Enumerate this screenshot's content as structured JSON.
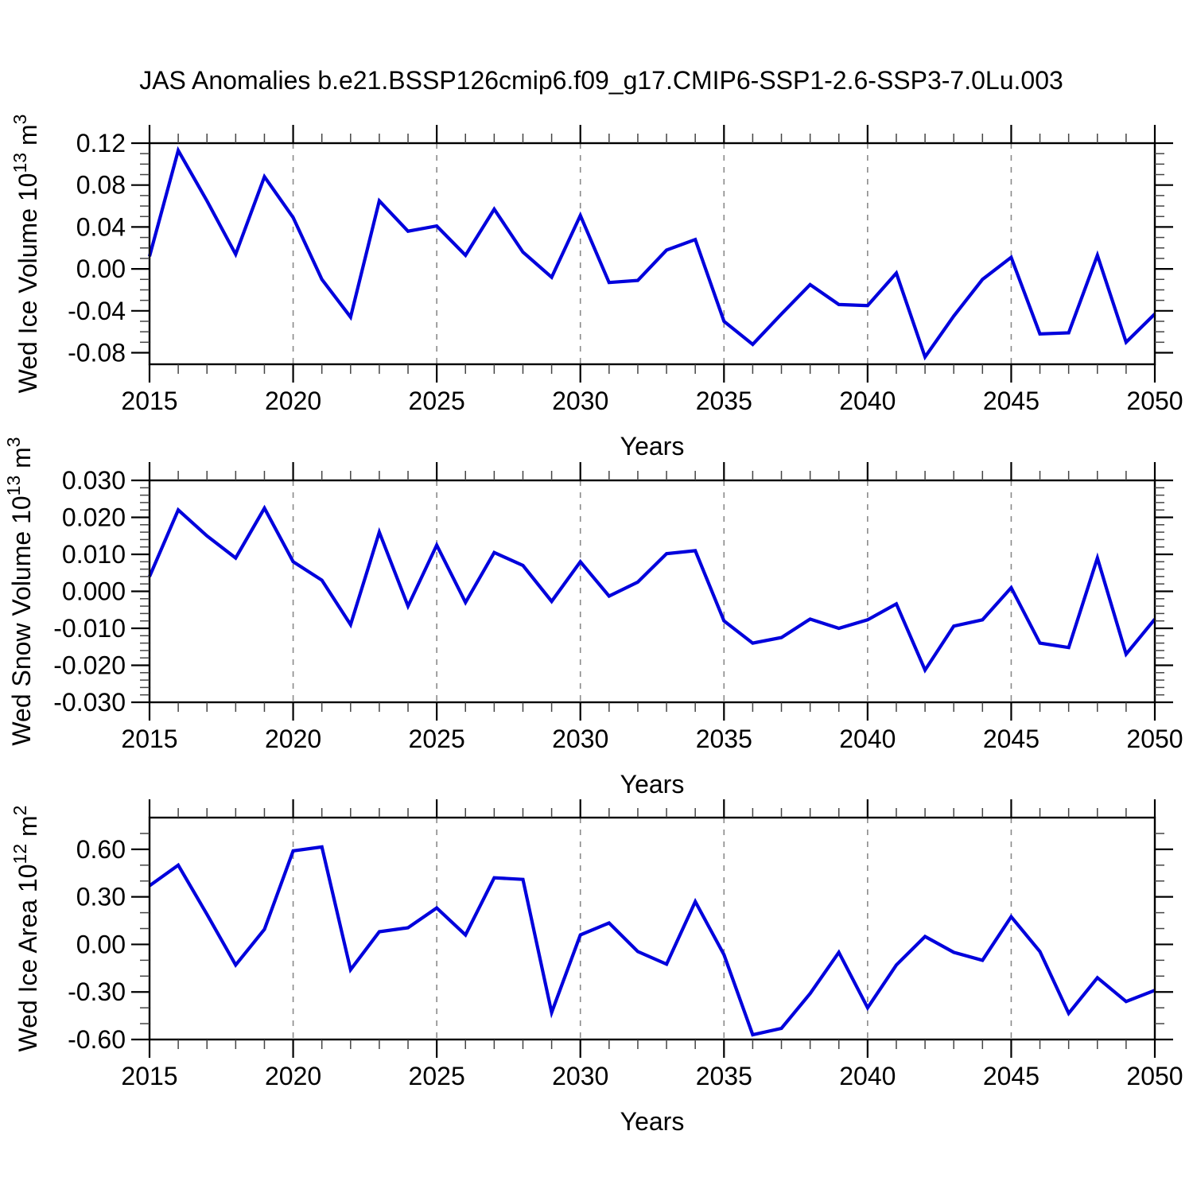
{
  "title": "JAS Anomalies b.e21.BSSP126cmip6.f09_g17.CMIP6-SSP1-2.6-SSP3-7.0Lu.003",
  "xlabel": "Years",
  "style": {
    "line_color": "#0000dc",
    "axis_color": "#000000",
    "minor_tick_color": "#444444",
    "grid_color": "#8a8a8a",
    "background": "#ffffff"
  },
  "years": [
    2015,
    2016,
    2017,
    2018,
    2019,
    2020,
    2021,
    2022,
    2023,
    2024,
    2025,
    2026,
    2027,
    2028,
    2029,
    2030,
    2031,
    2032,
    2033,
    2034,
    2035,
    2036,
    2037,
    2038,
    2039,
    2040,
    2041,
    2042,
    2043,
    2044,
    2045,
    2046,
    2047,
    2048,
    2049,
    2050
  ],
  "chart_data": [
    {
      "type": "line",
      "id": "wed-ice-volume",
      "ylabel": "Wed Ice Volume 10^13 m^3",
      "ylabel_parts": [
        {
          "t": "Wed Ice Volume 10"
        },
        {
          "t": "13",
          "sup": true
        },
        {
          "t": " m"
        },
        {
          "t": "3",
          "sup": true
        }
      ],
      "xlabel": "Years",
      "values": [
        0.012,
        0.113,
        0.065,
        0.014,
        0.088,
        0.049,
        -0.01,
        -0.046,
        0.065,
        0.036,
        0.041,
        0.013,
        0.057,
        0.016,
        -0.008,
        0.051,
        -0.013,
        -0.011,
        0.018,
        0.028,
        -0.05,
        -0.072,
        -0.043,
        -0.015,
        -0.034,
        -0.035,
        -0.004,
        -0.084,
        -0.045,
        -0.01,
        0.011,
        -0.062,
        -0.061,
        0.013,
        -0.07,
        -0.043
      ],
      "ylim": [
        -0.091,
        0.12
      ],
      "yticks": [
        0.12,
        0.08,
        0.04,
        0.0,
        -0.04,
        -0.08
      ],
      "ytick_labels": [
        "0.12",
        "0.08",
        "0.04",
        "0.00",
        "-0.04",
        "-0.08"
      ],
      "y_minor_step": 0.01,
      "xticks": [
        2015,
        2020,
        2025,
        2030,
        2035,
        2040,
        2045,
        2050
      ],
      "xtick_labels": [
        "2015",
        "2020",
        "2025",
        "2030",
        "2035",
        "2040",
        "2045",
        "2050"
      ],
      "x_minor_step": 1,
      "grid_years": [
        2020,
        2025,
        2030,
        2035,
        2040,
        2045
      ],
      "xlim": [
        2015,
        2050
      ]
    },
    {
      "type": "line",
      "id": "wed-snow-volume",
      "ylabel": "Wed Snow Volume 10^13 m^3",
      "ylabel_parts": [
        {
          "t": "Wed Snow Volume 10"
        },
        {
          "t": "13",
          "sup": true
        },
        {
          "t": " m"
        },
        {
          "t": "3",
          "sup": true
        }
      ],
      "xlabel": "Years",
      "values": [
        0.004,
        0.022,
        0.015,
        0.009,
        0.0225,
        0.008,
        0.003,
        -0.009,
        0.016,
        -0.004,
        0.0125,
        -0.003,
        0.0105,
        0.007,
        -0.0027,
        0.008,
        -0.0013,
        0.0025,
        0.0102,
        0.011,
        -0.008,
        -0.014,
        -0.0125,
        -0.0075,
        -0.01,
        -0.0077,
        -0.0034,
        -0.0213,
        -0.0094,
        -0.0077,
        0.001,
        -0.014,
        -0.0152,
        0.009,
        -0.017,
        -0.0075
      ],
      "ylim": [
        -0.03,
        0.03
      ],
      "yticks": [
        0.03,
        0.02,
        0.01,
        0.0,
        -0.01,
        -0.02,
        -0.03
      ],
      "ytick_labels": [
        "0.030",
        "0.020",
        "0.010",
        "0.000",
        "-0.010",
        "-0.020",
        "-0.030"
      ],
      "y_minor_step": 0.002,
      "xticks": [
        2015,
        2020,
        2025,
        2030,
        2035,
        2040,
        2045,
        2050
      ],
      "xtick_labels": [
        "2015",
        "2020",
        "2025",
        "2030",
        "2035",
        "2040",
        "2045",
        "2050"
      ],
      "x_minor_step": 1,
      "grid_years": [
        2020,
        2025,
        2030,
        2035,
        2040,
        2045
      ],
      "xlim": [
        2015,
        2050
      ]
    },
    {
      "type": "line",
      "id": "wed-ice-area",
      "ylabel": "Wed Ice Area 10^12 m^2",
      "ylabel_parts": [
        {
          "t": "Wed Ice Area 10"
        },
        {
          "t": "12",
          "sup": true
        },
        {
          "t": " m"
        },
        {
          "t": "2",
          "sup": true
        }
      ],
      "xlabel": "Years",
      "values": [
        0.37,
        0.5,
        0.19,
        -0.13,
        0.095,
        0.59,
        0.615,
        -0.16,
        0.08,
        0.105,
        0.23,
        0.06,
        0.42,
        0.41,
        -0.43,
        0.06,
        0.135,
        -0.045,
        -0.125,
        0.27,
        -0.065,
        -0.57,
        -0.53,
        -0.31,
        -0.05,
        -0.4,
        -0.13,
        0.05,
        -0.05,
        -0.1,
        0.175,
        -0.045,
        -0.435,
        -0.21,
        -0.36,
        -0.29
      ],
      "ylim": [
        -0.6,
        0.8
      ],
      "yticks": [
        0.6,
        0.3,
        0.0,
        -0.3,
        -0.6
      ],
      "ytick_labels": [
        "0.60",
        "0.30",
        "0.00",
        "-0.30",
        "-0.60"
      ],
      "y_minor_step": 0.1,
      "xticks": [
        2015,
        2020,
        2025,
        2030,
        2035,
        2040,
        2045,
        2050
      ],
      "xtick_labels": [
        "2015",
        "2020",
        "2025",
        "2030",
        "2035",
        "2040",
        "2045",
        "2050"
      ],
      "x_minor_step": 1,
      "grid_years": [
        2020,
        2025,
        2030,
        2035,
        2040,
        2045
      ],
      "xlim": [
        2015,
        2050
      ]
    }
  ]
}
